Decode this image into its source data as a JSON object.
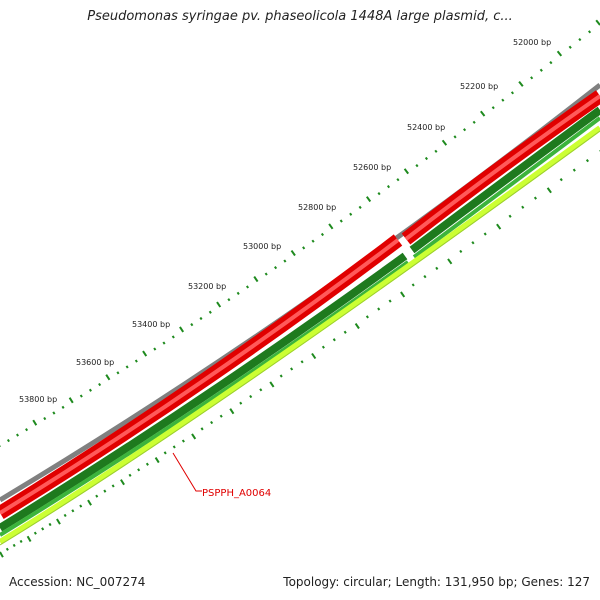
{
  "header": {
    "title": "Pseudomonas syringae pv. phaseolicola 1448A large plasmid, c..."
  },
  "footer": {
    "accession": "Accession: NC_007274",
    "stats": "Topology: circular; Length: 131,950 bp; Genes: 127"
  },
  "ticks": {
    "labels": [
      "52000 bp",
      "52200 bp",
      "52400 bp",
      "52600 bp",
      "52800 bp",
      "53000 bp",
      "53200 bp",
      "53400 bp",
      "53600 bp",
      "53800 bp"
    ]
  },
  "gene_label": "PSPPH_A0064",
  "colors": {
    "backbone": "#808080",
    "forward_genes": "#e00000",
    "forward_genes_light": "#ff6060",
    "cds_dark": "#1e7a1e",
    "cds_mid": "#3cb43c",
    "cds_light": "#ccff33",
    "ticks": "#1e8a1e",
    "label_line": "#e00000"
  }
}
